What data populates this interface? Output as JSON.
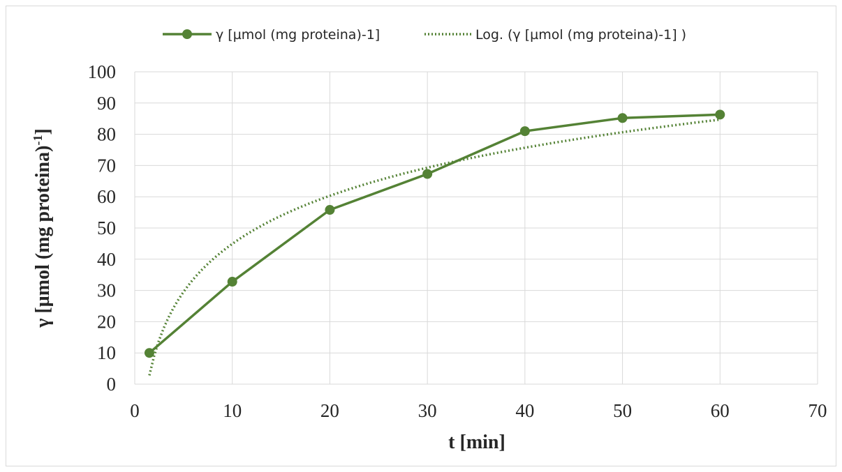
{
  "chart_data": {
    "type": "line",
    "xlabel": "t [min]",
    "ylabel_main": "γ [µmol (mg proteina)",
    "ylabel_sup": "-1",
    "ylabel_close": "]",
    "xlim": [
      0,
      70
    ],
    "ylim": [
      0,
      100
    ],
    "xticks": [
      "0",
      "10",
      "20",
      "30",
      "40",
      "50",
      "60",
      "70"
    ],
    "yticks": [
      "0",
      "10",
      "20",
      "30",
      "40",
      "50",
      "60",
      "70",
      "80",
      "90",
      "100"
    ],
    "grid": true,
    "legend_position": "top",
    "series": [
      {
        "name": "γ [µmol (mg proteina)-1]",
        "color": "#548235",
        "style": "solid-markers",
        "x": [
          1.5,
          10,
          20,
          30,
          40,
          50,
          60
        ],
        "y": [
          10,
          32.8,
          55.8,
          67.3,
          81,
          85.2,
          86.3
        ]
      }
    ],
    "trendline": {
      "name": "Log. (γ [µmol (mg proteina)-1]  )",
      "color": "#548235",
      "style": "dotted",
      "type": "logarithmic",
      "x_range": [
        1.5,
        60
      ],
      "coef_a": 22.2,
      "coef_b": -6.2
    }
  }
}
